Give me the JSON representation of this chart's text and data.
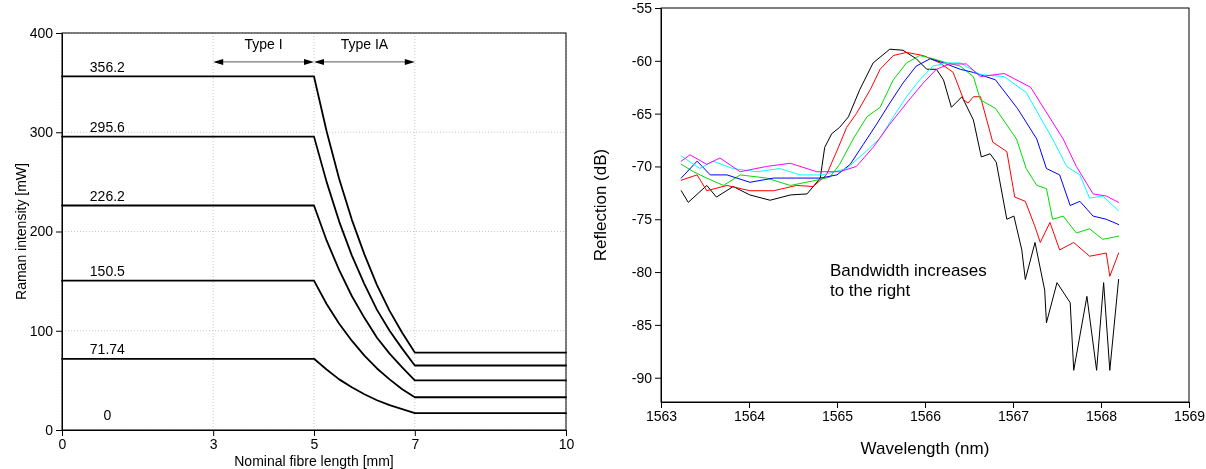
{
  "chart_data": [
    {
      "type": "line",
      "xlabel": "Nominal fibre length [mm]",
      "ylabel": "Raman intensity [mW]",
      "xlim": [
        0,
        10
      ],
      "ylim": [
        0,
        400
      ],
      "xticks": [
        0,
        3,
        5,
        7,
        10
      ],
      "yticks": [
        0,
        100,
        200,
        300,
        400
      ],
      "grid": true,
      "marker": "none",
      "line_style": "solid",
      "series": [
        {
          "color": "#000000",
          "x": [
            0,
            5,
            5.25,
            5.5,
            5.75,
            6,
            6.25,
            6.5,
            6.75,
            7,
            10
          ],
          "values": [
            356.2,
            356.2,
            301,
            253,
            212,
            177,
            146,
            120,
            98,
            78,
            78
          ]
        },
        {
          "color": "#000000",
          "x": [
            0,
            5,
            5.25,
            5.5,
            5.75,
            6,
            6.25,
            6.5,
            6.75,
            7,
            10
          ],
          "values": [
            295.6,
            295.6,
            250,
            210,
            176,
            147,
            121,
            100,
            82,
            65,
            65
          ]
        },
        {
          "color": "#000000",
          "x": [
            0,
            5,
            5.25,
            5.5,
            5.75,
            6,
            6.25,
            6.5,
            6.75,
            7,
            10
          ],
          "values": [
            226.2,
            226.2,
            191,
            161,
            135,
            113,
            93,
            77,
            63,
            50,
            50
          ]
        },
        {
          "color": "#000000",
          "x": [
            0,
            5,
            5.25,
            5.5,
            5.75,
            6,
            6.25,
            6.5,
            6.75,
            7,
            10
          ],
          "values": [
            150.5,
            150.5,
            127,
            107,
            90,
            75,
            62,
            51,
            41,
            33,
            33
          ]
        },
        {
          "color": "#000000",
          "x": [
            0,
            5,
            5.25,
            5.5,
            5.75,
            6,
            6.25,
            6.5,
            6.75,
            7,
            10
          ],
          "values": [
            71.74,
            71.74,
            61,
            51,
            43,
            36,
            30,
            25,
            21,
            17,
            17
          ]
        }
      ],
      "annotations": [
        "356.2",
        "295.6",
        "226.2",
        "150.5",
        "71.74",
        "0",
        "Type I",
        "Type IA"
      ]
    },
    {
      "type": "line",
      "xlabel": "Wavelength (nm)",
      "ylabel": "Reflection (dB)",
      "xlim": [
        1563,
        1569
      ],
      "ylim": [
        -92.3,
        -55
      ],
      "xticks": [
        1563,
        1564,
        1565,
        1566,
        1567,
        1568,
        1569
      ],
      "yticks": [
        -55,
        -60,
        -65,
        -70,
        -75,
        -80,
        -85,
        -90
      ],
      "grid": false,
      "marker": "none",
      "line_style": "solid",
      "series": [
        {
          "color": "#000000",
          "x": [
            1563.23,
            1563.31,
            1563.52,
            1563.63,
            1563.82,
            1564.01,
            1564.24,
            1564.47,
            1564.66,
            1564.81,
            1564.86,
            1564.94,
            1565.03,
            1565.13,
            1565.26,
            1565.41,
            1565.6,
            1565.75,
            1565.9,
            1566.02,
            1566.13,
            1566.21,
            1566.3,
            1566.42,
            1566.55,
            1566.64,
            1566.74,
            1566.81,
            1566.93,
            1567.01,
            1567.1,
            1567.14,
            1567.25,
            1567.36,
            1567.38,
            1567.5,
            1567.65,
            1567.69,
            1567.84,
            1567.95,
            1568.03,
            1568.1,
            1568.2
          ],
          "values": [
            -72.3,
            -73.4,
            -71.8,
            -72.9,
            -71.9,
            -72.7,
            -73.2,
            -72.7,
            -72.6,
            -71.1,
            -68.2,
            -66.9,
            -66.3,
            -65.3,
            -62.7,
            -60.2,
            -58.9,
            -59.0,
            -59.8,
            -60.8,
            -60.8,
            -61.8,
            -64.4,
            -63.4,
            -65.6,
            -69.1,
            -68.8,
            -69.6,
            -75.0,
            -74.7,
            -77.9,
            -80.7,
            -77.2,
            -81.7,
            -84.8,
            -81.0,
            -82.9,
            -89.3,
            -82.3,
            -89.3,
            -81.0,
            -89.3,
            -80.7
          ]
        },
        {
          "color": "#ff0000",
          "x": [
            1563.23,
            1563.41,
            1563.52,
            1563.75,
            1564.01,
            1564.28,
            1564.54,
            1564.73,
            1564.88,
            1565.0,
            1565.11,
            1565.22,
            1565.38,
            1565.49,
            1565.64,
            1565.79,
            1565.98,
            1566.17,
            1566.32,
            1566.44,
            1566.49,
            1566.55,
            1566.63,
            1566.77,
            1566.93,
            1567.02,
            1567.14,
            1567.25,
            1567.31,
            1567.42,
            1567.53,
            1567.69,
            1567.87,
            1568.06,
            1568.1,
            1568.2
          ],
          "values": [
            -71.3,
            -70.8,
            -72.3,
            -71.8,
            -72.3,
            -72.3,
            -71.8,
            -71.9,
            -70.8,
            -68.5,
            -66.3,
            -65.0,
            -62.7,
            -60.8,
            -59.5,
            -59.2,
            -59.5,
            -60.2,
            -61.1,
            -63.7,
            -64.0,
            -63.4,
            -63.4,
            -67.7,
            -68.6,
            -72.9,
            -73.3,
            -75.7,
            -77.2,
            -75.3,
            -77.9,
            -77.2,
            -78.5,
            -78.2,
            -80.4,
            -78.2
          ]
        },
        {
          "color": "#00dd00",
          "x": [
            1563.23,
            1563.37,
            1563.52,
            1563.71,
            1563.9,
            1564.2,
            1564.47,
            1564.77,
            1564.92,
            1565.03,
            1565.19,
            1565.34,
            1565.49,
            1565.64,
            1565.79,
            1565.94,
            1566.09,
            1566.25,
            1566.4,
            1566.55,
            1566.63,
            1566.8,
            1567.04,
            1567.15,
            1567.27,
            1567.38,
            1567.45,
            1567.57,
            1567.72,
            1567.87,
            1568.02,
            1568.2
          ],
          "values": [
            -69.8,
            -70.5,
            -71.1,
            -71.8,
            -70.8,
            -71.1,
            -71.8,
            -71.3,
            -71.0,
            -69.8,
            -67.3,
            -65.3,
            -64.4,
            -61.8,
            -60.2,
            -59.5,
            -59.8,
            -60.2,
            -60.5,
            -61.5,
            -63.7,
            -64.5,
            -67.4,
            -70.2,
            -71.8,
            -72.1,
            -75.0,
            -74.7,
            -76.3,
            -75.9,
            -76.9,
            -76.6
          ]
        },
        {
          "color": "#0000ff",
          "x": [
            1563.23,
            1563.41,
            1563.56,
            1563.75,
            1564.01,
            1564.28,
            1564.54,
            1564.81,
            1565.0,
            1565.15,
            1565.3,
            1565.45,
            1565.6,
            1565.75,
            1565.9,
            1566.06,
            1566.21,
            1566.4,
            1566.55,
            1566.8,
            1567.05,
            1567.27,
            1567.38,
            1567.53,
            1567.65,
            1567.76,
            1567.91,
            1568.06,
            1568.2
          ],
          "values": [
            -71.1,
            -69.5,
            -70.8,
            -70.8,
            -71.5,
            -71.1,
            -71.1,
            -71.1,
            -70.8,
            -69.8,
            -67.9,
            -66.0,
            -64.0,
            -62.1,
            -60.5,
            -59.8,
            -60.2,
            -60.8,
            -61.1,
            -61.8,
            -64.5,
            -67.4,
            -70.2,
            -70.8,
            -73.7,
            -73.3,
            -74.7,
            -75.0,
            -75.5
          ]
        },
        {
          "color": "#00ffff",
          "x": [
            1563.23,
            1563.44,
            1563.59,
            1563.82,
            1564.09,
            1564.35,
            1564.58,
            1564.84,
            1565.11,
            1565.34,
            1565.49,
            1565.64,
            1565.79,
            1565.94,
            1566.09,
            1566.25,
            1566.4,
            1566.63,
            1566.9,
            1567.15,
            1567.45,
            1567.61,
            1567.76,
            1567.87,
            1568.02,
            1568.2
          ],
          "values": [
            -69.0,
            -70.2,
            -69.5,
            -70.2,
            -70.5,
            -70.2,
            -70.8,
            -70.8,
            -70.2,
            -68.5,
            -67.3,
            -65.3,
            -63.4,
            -61.8,
            -60.5,
            -60.2,
            -60.2,
            -61.3,
            -61.5,
            -63.0,
            -67.4,
            -70.0,
            -70.8,
            -73.0,
            -72.8,
            -74.2
          ]
        },
        {
          "color": "#ff00ff",
          "x": [
            1563.23,
            1563.33,
            1563.52,
            1563.67,
            1563.9,
            1564.2,
            1564.47,
            1564.77,
            1565.03,
            1565.22,
            1565.41,
            1565.6,
            1565.79,
            1565.98,
            1566.13,
            1566.28,
            1566.47,
            1566.63,
            1566.9,
            1567.2,
            1567.57,
            1567.72,
            1567.91,
            1568.06,
            1568.2
          ],
          "values": [
            -69.5,
            -68.9,
            -69.8,
            -69.2,
            -70.5,
            -70.0,
            -69.7,
            -70.5,
            -70.5,
            -70.0,
            -68.2,
            -66.0,
            -64.0,
            -62.1,
            -60.8,
            -60.3,
            -60.3,
            -61.5,
            -61.2,
            -62.5,
            -67.4,
            -70.0,
            -72.6,
            -72.8,
            -73.4
          ]
        }
      ],
      "annotations": [
        "Bandwidth increases\nto the right"
      ]
    }
  ]
}
